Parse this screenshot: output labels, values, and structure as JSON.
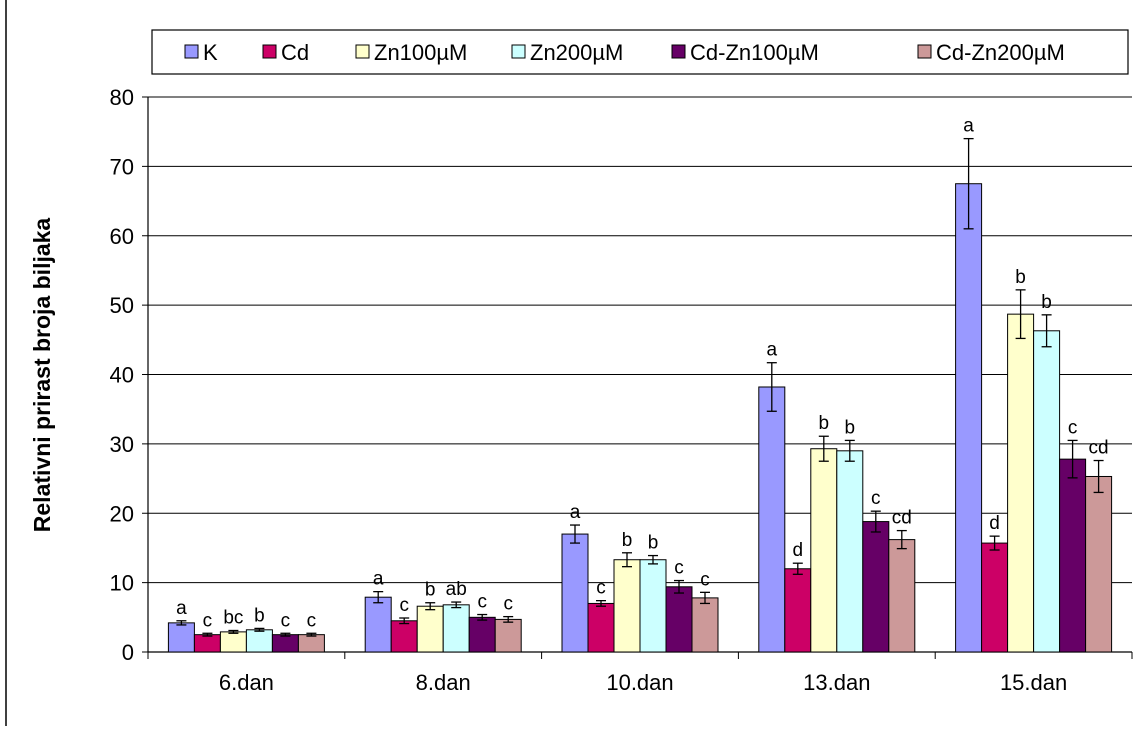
{
  "chart_data": {
    "type": "bar",
    "title": "",
    "xlabel": "",
    "ylabel": "Relativni prirast broja biljaka",
    "ylim": [
      0,
      80
    ],
    "yticks": [
      0,
      10,
      20,
      30,
      40,
      50,
      60,
      70,
      80
    ],
    "grid": true,
    "legend_position": "top",
    "categories": [
      "6.dan",
      "8.dan",
      "10.dan",
      "13.dan",
      "15.dan"
    ],
    "series": [
      {
        "name": "K",
        "color": "#9999FF",
        "values": [
          4.2,
          7.9,
          17.0,
          38.2,
          67.5
        ],
        "errors": [
          0.3,
          0.8,
          1.3,
          3.5,
          6.5
        ],
        "letters": [
          "a",
          "a",
          "a",
          "a",
          "a"
        ]
      },
      {
        "name": "Cd",
        "color": "#CC0066",
        "values": [
          2.5,
          4.5,
          7.0,
          12.0,
          15.7
        ],
        "errors": [
          0.2,
          0.4,
          0.4,
          0.8,
          1.0
        ],
        "letters": [
          "c",
          "c",
          "c",
          "d",
          "d"
        ]
      },
      {
        "name": "Zn100µM",
        "color": "#FFFFCC",
        "values": [
          2.9,
          6.6,
          13.3,
          29.3,
          48.7
        ],
        "errors": [
          0.2,
          0.5,
          1.0,
          1.8,
          3.5
        ],
        "letters": [
          "bc",
          "b",
          "b",
          "b",
          "b"
        ]
      },
      {
        "name": "Zn200µM",
        "color": "#CCFFFF",
        "values": [
          3.2,
          6.8,
          13.3,
          29.0,
          46.3
        ],
        "errors": [
          0.2,
          0.4,
          0.6,
          1.5,
          2.3
        ],
        "letters": [
          "b",
          "ab",
          "b",
          "b",
          "b"
        ]
      },
      {
        "name": "Cd-Zn100µM",
        "color": "#660066",
        "values": [
          2.5,
          5.0,
          9.4,
          18.8,
          27.8
        ],
        "errors": [
          0.2,
          0.4,
          0.9,
          1.5,
          2.7
        ],
        "letters": [
          "c",
          "c",
          "c",
          "c",
          "c"
        ]
      },
      {
        "name": "Cd-Zn200µM",
        "color": "#CC9999",
        "values": [
          2.5,
          4.7,
          7.8,
          16.2,
          25.3
        ],
        "errors": [
          0.2,
          0.4,
          0.8,
          1.3,
          2.3
        ],
        "letters": [
          "c",
          "c",
          "c",
          "cd",
          "cd"
        ]
      }
    ]
  }
}
